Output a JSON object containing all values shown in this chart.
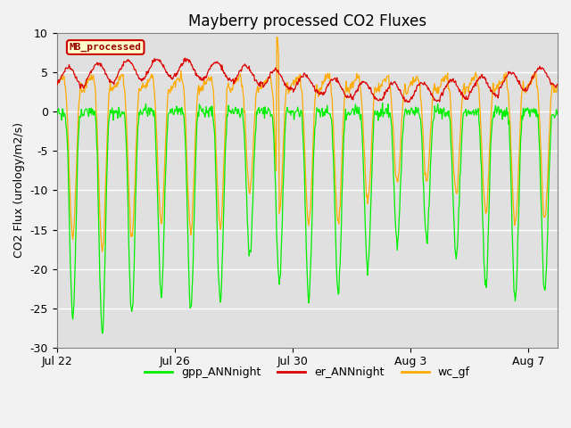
{
  "title": "Mayberry processed CO2 Fluxes",
  "ylabel": "CO2 Flux (urology/m2/s)",
  "xlabel": "",
  "ylim": [
    -30,
    10
  ],
  "yticks": [
    -30,
    -25,
    -20,
    -15,
    -10,
    -5,
    0,
    5,
    10
  ],
  "xtick_labels": [
    "Jul 22",
    "Jul 26",
    "Jul 30",
    "Aug 3",
    "Aug 7"
  ],
  "plot_bg": "#e0e0e0",
  "fig_bg": "#f2f2f2",
  "legend_label": "MB_processed",
  "legend_bg": "#ffffcc",
  "legend_border": "#cc0000",
  "legend_text_color": "#990000",
  "line_green": "#00ee00",
  "line_red": "#dd0000",
  "line_orange": "#ffaa00",
  "series_labels": [
    "gpp_ANNnight",
    "er_ANNnight",
    "wc_gf"
  ],
  "n_days": 17,
  "points_per_day": 48,
  "figsize": [
    6.4,
    4.8
  ],
  "dpi": 100
}
